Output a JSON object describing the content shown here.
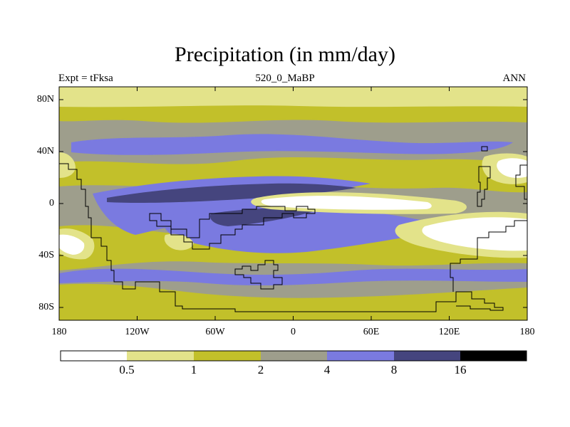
{
  "title": "Precipitation (in mm/day)",
  "subtitle_left": "Expt = tFksa",
  "subtitle_center": "520_0_MaBP",
  "subtitle_right": "ANN",
  "y_axis_labels": [
    "80N",
    "40N",
    "0",
    "40S",
    "80S"
  ],
  "x_axis_labels": [
    "180",
    "120W",
    "60W",
    "0",
    "60E",
    "120E",
    "180"
  ],
  "colorbar": {
    "levels": [
      "0.5",
      "1",
      "2",
      "4",
      "8",
      "16"
    ],
    "colors": [
      "#ffffff",
      "#e3e38a",
      "#c2c02a",
      "#9e9e8c",
      "#7a7ae0",
      "#45457e",
      "#000000"
    ]
  },
  "map_colors": {
    "very_low": "#ffffff",
    "low": "#e3e38a",
    "mid_low": "#c2c02a",
    "mid": "#9e9e8c",
    "high": "#7a7ae0",
    "very_high": "#45457e"
  }
}
